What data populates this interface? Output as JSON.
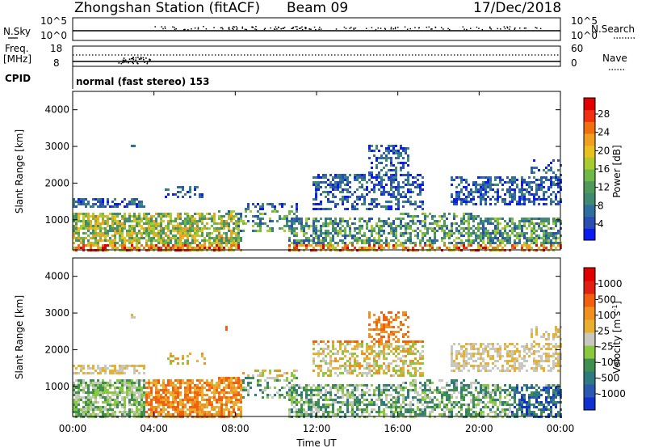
{
  "header": {
    "station": "Zhongshan Station (fitACF)",
    "beam": "Beam 09",
    "date": "17/Dec/2018"
  },
  "top_panels": {
    "nsky_label": "N.Sky",
    "nsearch_label": "N.Search",
    "nsky_ticks": [
      "10^5",
      "10^0"
    ],
    "nsearch_ticks": [
      "10^5",
      "10^0"
    ],
    "freq_label": "Freq.",
    "freq_unit": "[MHz]",
    "freq_ticks": [
      "18",
      "8"
    ],
    "nave_label": "Nave",
    "nave_ticks": [
      "60",
      "0"
    ],
    "cpid_label": "CPID",
    "cpid_text": "normal (fast stereo) 153"
  },
  "chart_data": [
    {
      "type": "heatmap",
      "name": "power",
      "ylabel": "Slant Range [km]",
      "yticks": [
        "1000",
        "2000",
        "3000",
        "4000"
      ],
      "ylim": [
        180,
        4500
      ],
      "xlim": [
        0,
        24
      ],
      "colorbar": {
        "label": "Power [dB]",
        "ticks": [
          "28",
          "24",
          "20",
          "16",
          "12",
          "8",
          "4"
        ],
        "colors": [
          "#0a1cf0",
          "#2a4fb0",
          "#2f6fa0",
          "#3f8a70",
          "#4f9a5a",
          "#6fb84a",
          "#a8cc30",
          "#e8c020",
          "#f0a020",
          "#f07010",
          "#f03010",
          "#e00000"
        ]
      }
    },
    {
      "type": "heatmap",
      "name": "velocity",
      "ylabel": "Slant Range [km]",
      "yticks": [
        "1000",
        "2000",
        "3000",
        "4000"
      ],
      "ylim": [
        180,
        4500
      ],
      "xlim": [
        0,
        24
      ],
      "xticks": [
        "00:00",
        "04:00",
        "08:00",
        "12:00",
        "16:00",
        "20:00",
        "00:00"
      ],
      "xlabel": "Time UT",
      "colorbar": {
        "label": "Velocity [m s",
        "label_sup": "-1",
        "label_end": "]",
        "ticks": [
          "1000",
          "500",
          "100",
          "25",
          "-25",
          "-100",
          "-500",
          "-1000"
        ],
        "colors": [
          "#1030d0",
          "#2a5ab0",
          "#2f7a80",
          "#3f9050",
          "#8ac840",
          "#c8c8c0",
          "#e8b030",
          "#f09020",
          "#f06010",
          "#e02010",
          "#e00000"
        ]
      }
    }
  ]
}
